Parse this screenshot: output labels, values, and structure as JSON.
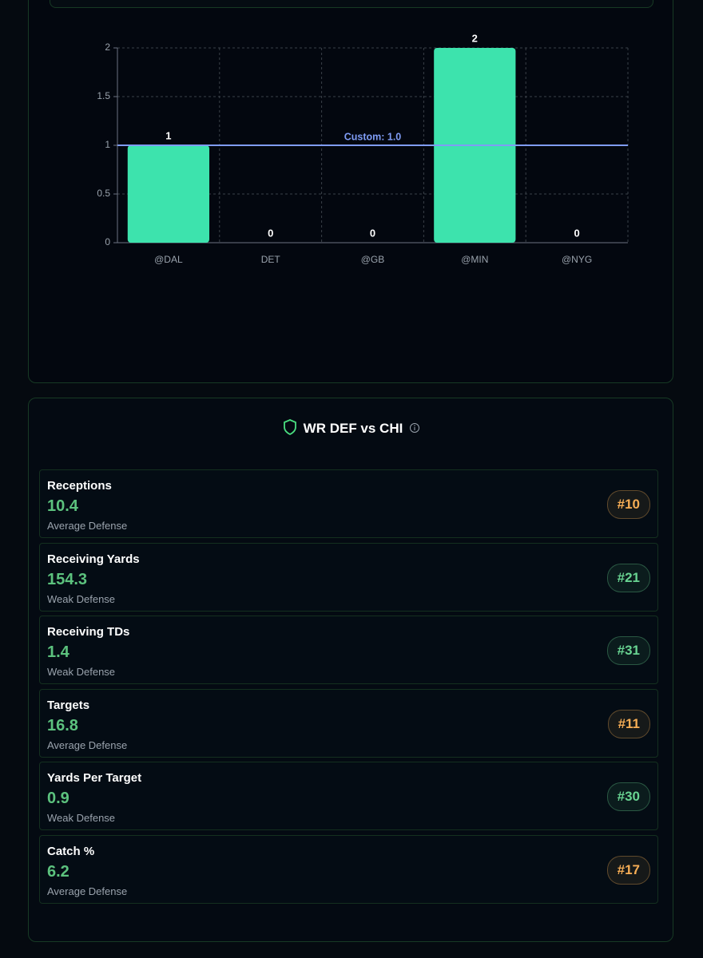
{
  "chart_data": {
    "type": "bar",
    "categories": [
      "@DAL",
      "DET",
      "@GB",
      "@MIN",
      "@NYG"
    ],
    "values": [
      1,
      0,
      0,
      2,
      0
    ],
    "color": "#3de3ad",
    "ylim": [
      0,
      2
    ],
    "yticks": [
      0,
      0.5,
      1,
      1.5,
      2
    ],
    "grid": true,
    "reference_line": {
      "value": 1,
      "label": "Custom: 1.0",
      "color": "#7f9cf5"
    }
  },
  "defense": {
    "title": "WR DEF vs CHI",
    "stats": [
      {
        "label": "Receptions",
        "value": 10.4,
        "rating": "Average Defense",
        "rank": "#10",
        "color": "#f6ad55"
      },
      {
        "label": "Receiving Yards",
        "value": 154.3,
        "rating": "Weak Defense",
        "rank": "#21",
        "color": "#68d391"
      },
      {
        "label": "Receiving TDs",
        "value": 1.4,
        "rating": "Weak Defense",
        "rank": "#31",
        "color": "#68d391"
      },
      {
        "label": "Targets",
        "value": 16.8,
        "rating": "Average Defense",
        "rank": "#11",
        "color": "#f6ad55"
      },
      {
        "label": "Yards Per Target",
        "value": 0.9,
        "rating": "Weak Defense",
        "rank": "#30",
        "color": "#68d391"
      },
      {
        "label": "Catch %",
        "value": 6.2,
        "rating": "Average Defense",
        "rank": "#17",
        "color": "#f6ad55"
      }
    ]
  }
}
